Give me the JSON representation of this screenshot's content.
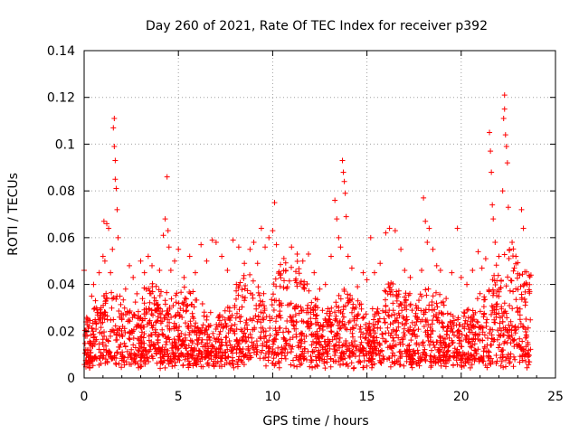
{
  "chart_data": {
    "type": "scatter",
    "title": "Day 260 of 2021, Rate Of TEC Index for receiver p392",
    "xlabel": "GPS time / hours",
    "ylabel": "ROTI / TECUs",
    "xlim": [
      0,
      25
    ],
    "ylim": [
      0,
      0.14
    ],
    "xticks": [
      0,
      5,
      10,
      15,
      20,
      25
    ],
    "xtick_labels": [
      "0",
      "5",
      "10",
      "15",
      "20",
      "25"
    ],
    "yticks": [
      0,
      0.02,
      0.04,
      0.06,
      0.08,
      0.1,
      0.12,
      0.14
    ],
    "ytick_labels": [
      "0",
      "0.02",
      "0.04",
      "0.06",
      "0.08",
      "0.1",
      "0.12",
      "0.14"
    ],
    "grid": true,
    "marker": "plus",
    "color": "#ff0000",
    "series": [
      {
        "name": "ROTI",
        "points": [
          [
            0.0,
            0.046
          ],
          [
            0.1,
            0.024
          ],
          [
            0.2,
            0.012
          ],
          [
            0.3,
            0.009
          ],
          [
            0.4,
            0.035
          ],
          [
            0.5,
            0.04
          ],
          [
            0.6,
            0.033
          ],
          [
            0.7,
            0.028
          ],
          [
            0.8,
            0.045
          ],
          [
            0.9,
            0.03
          ],
          [
            1.0,
            0.052
          ],
          [
            1.05,
            0.067
          ],
          [
            1.1,
            0.05
          ],
          [
            1.2,
            0.066
          ],
          [
            1.3,
            0.064
          ],
          [
            1.4,
            0.045
          ],
          [
            1.5,
            0.055
          ],
          [
            1.55,
            0.107
          ],
          [
            1.6,
            0.111
          ],
          [
            1.6,
            0.099
          ],
          [
            1.65,
            0.093
          ],
          [
            1.65,
            0.085
          ],
          [
            1.7,
            0.081
          ],
          [
            1.75,
            0.072
          ],
          [
            1.8,
            0.06
          ],
          [
            1.9,
            0.035
          ],
          [
            2.0,
            0.025
          ],
          [
            2.2,
            0.038
          ],
          [
            2.4,
            0.048
          ],
          [
            2.6,
            0.043
          ],
          [
            2.8,
            0.036
          ],
          [
            3.0,
            0.05
          ],
          [
            3.2,
            0.045
          ],
          [
            3.4,
            0.052
          ],
          [
            3.6,
            0.048
          ],
          [
            3.8,
            0.033
          ],
          [
            4.0,
            0.046
          ],
          [
            4.2,
            0.061
          ],
          [
            4.3,
            0.068
          ],
          [
            4.4,
            0.086
          ],
          [
            4.45,
            0.063
          ],
          [
            4.5,
            0.056
          ],
          [
            4.6,
            0.046
          ],
          [
            4.8,
            0.05
          ],
          [
            5.0,
            0.055
          ],
          [
            5.3,
            0.043
          ],
          [
            5.6,
            0.052
          ],
          [
            5.9,
            0.045
          ],
          [
            6.2,
            0.057
          ],
          [
            6.5,
            0.05
          ],
          [
            6.8,
            0.059
          ],
          [
            7.0,
            0.058
          ],
          [
            7.3,
            0.052
          ],
          [
            7.6,
            0.046
          ],
          [
            7.9,
            0.059
          ],
          [
            8.2,
            0.056
          ],
          [
            8.5,
            0.049
          ],
          [
            8.8,
            0.055
          ],
          [
            9.0,
            0.058
          ],
          [
            9.2,
            0.049
          ],
          [
            9.4,
            0.064
          ],
          [
            9.6,
            0.056
          ],
          [
            9.8,
            0.06
          ],
          [
            10.0,
            0.063
          ],
          [
            10.1,
            0.075
          ],
          [
            10.2,
            0.057
          ],
          [
            10.4,
            0.044
          ],
          [
            10.7,
            0.046
          ],
          [
            11.0,
            0.056
          ],
          [
            11.3,
            0.053
          ],
          [
            11.6,
            0.05
          ],
          [
            11.9,
            0.053
          ],
          [
            12.2,
            0.045
          ],
          [
            12.5,
            0.038
          ],
          [
            12.8,
            0.04
          ],
          [
            13.1,
            0.052
          ],
          [
            13.3,
            0.076
          ],
          [
            13.4,
            0.068
          ],
          [
            13.5,
            0.06
          ],
          [
            13.6,
            0.056
          ],
          [
            13.7,
            0.093
          ],
          [
            13.75,
            0.088
          ],
          [
            13.8,
            0.084
          ],
          [
            13.85,
            0.079
          ],
          [
            13.9,
            0.069
          ],
          [
            14.0,
            0.052
          ],
          [
            14.2,
            0.047
          ],
          [
            14.5,
            0.039
          ],
          [
            14.8,
            0.045
          ],
          [
            15.0,
            0.042
          ],
          [
            15.2,
            0.06
          ],
          [
            15.4,
            0.045
          ],
          [
            15.7,
            0.049
          ],
          [
            16.0,
            0.062
          ],
          [
            16.2,
            0.064
          ],
          [
            16.5,
            0.063
          ],
          [
            16.8,
            0.055
          ],
          [
            17.0,
            0.046
          ],
          [
            17.3,
            0.043
          ],
          [
            17.6,
            0.031
          ],
          [
            17.9,
            0.046
          ],
          [
            18.0,
            0.077
          ],
          [
            18.1,
            0.067
          ],
          [
            18.2,
            0.058
          ],
          [
            18.3,
            0.064
          ],
          [
            18.5,
            0.055
          ],
          [
            18.7,
            0.048
          ],
          [
            18.9,
            0.046
          ],
          [
            19.2,
            0.034
          ],
          [
            19.5,
            0.045
          ],
          [
            19.8,
            0.064
          ],
          [
            20.0,
            0.043
          ],
          [
            20.3,
            0.04
          ],
          [
            20.6,
            0.046
          ],
          [
            20.9,
            0.054
          ],
          [
            21.1,
            0.047
          ],
          [
            21.3,
            0.051
          ],
          [
            21.5,
            0.105
          ],
          [
            21.55,
            0.097
          ],
          [
            21.6,
            0.088
          ],
          [
            21.65,
            0.074
          ],
          [
            21.7,
            0.068
          ],
          [
            21.8,
            0.058
          ],
          [
            22.0,
            0.052
          ],
          [
            22.2,
            0.08
          ],
          [
            22.25,
            0.111
          ],
          [
            22.3,
            0.115
          ],
          [
            22.3,
            0.121
          ],
          [
            22.35,
            0.104
          ],
          [
            22.4,
            0.099
          ],
          [
            22.45,
            0.092
          ],
          [
            22.5,
            0.073
          ],
          [
            22.7,
            0.058
          ],
          [
            22.9,
            0.052
          ],
          [
            23.1,
            0.044
          ],
          [
            23.2,
            0.072
          ],
          [
            23.3,
            0.064
          ],
          [
            23.5,
            0.04
          ],
          [
            23.7,
            0.044
          ]
        ]
      }
    ]
  }
}
